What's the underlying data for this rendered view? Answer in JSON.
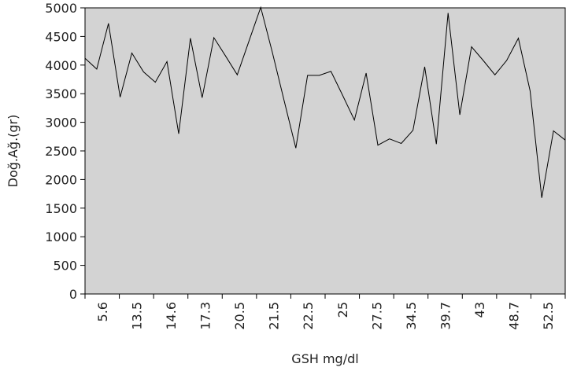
{
  "chart_data": {
    "type": "line",
    "title": "",
    "xlabel": "GSH mg/dl",
    "ylabel": "Doğ.Ağ.(gr)",
    "ylim": [
      0,
      5000
    ],
    "yticks": [
      0,
      500,
      1000,
      1500,
      2000,
      2500,
      3000,
      3500,
      4000,
      4500,
      5000
    ],
    "xtick_labels": [
      "5.6",
      "13.5",
      "14.6",
      "17.3",
      "20.5",
      "21.5",
      "22.5",
      "25",
      "27.5",
      "34.5",
      "39.7",
      "43",
      "48.7",
      "52.5"
    ],
    "grid": false,
    "legend": false,
    "colors": {
      "plot_background": "#d3d3d3",
      "line": "#000000",
      "axis": "#000000"
    },
    "series": [
      {
        "values": [
          4120,
          3930,
          4730,
          3440,
          4210,
          3880,
          3700,
          4060,
          2800,
          4470,
          3430,
          4480,
          4160,
          3830,
          4420,
          5010,
          4220,
          3380,
          2550,
          3820,
          3820,
          3890,
          3470,
          3040,
          3860,
          2600,
          2710,
          2630,
          2860,
          3970,
          2620,
          4910,
          3130,
          4320,
          4080,
          3830,
          4080,
          4470,
          3550,
          1680,
          2850,
          2690
        ]
      }
    ]
  }
}
